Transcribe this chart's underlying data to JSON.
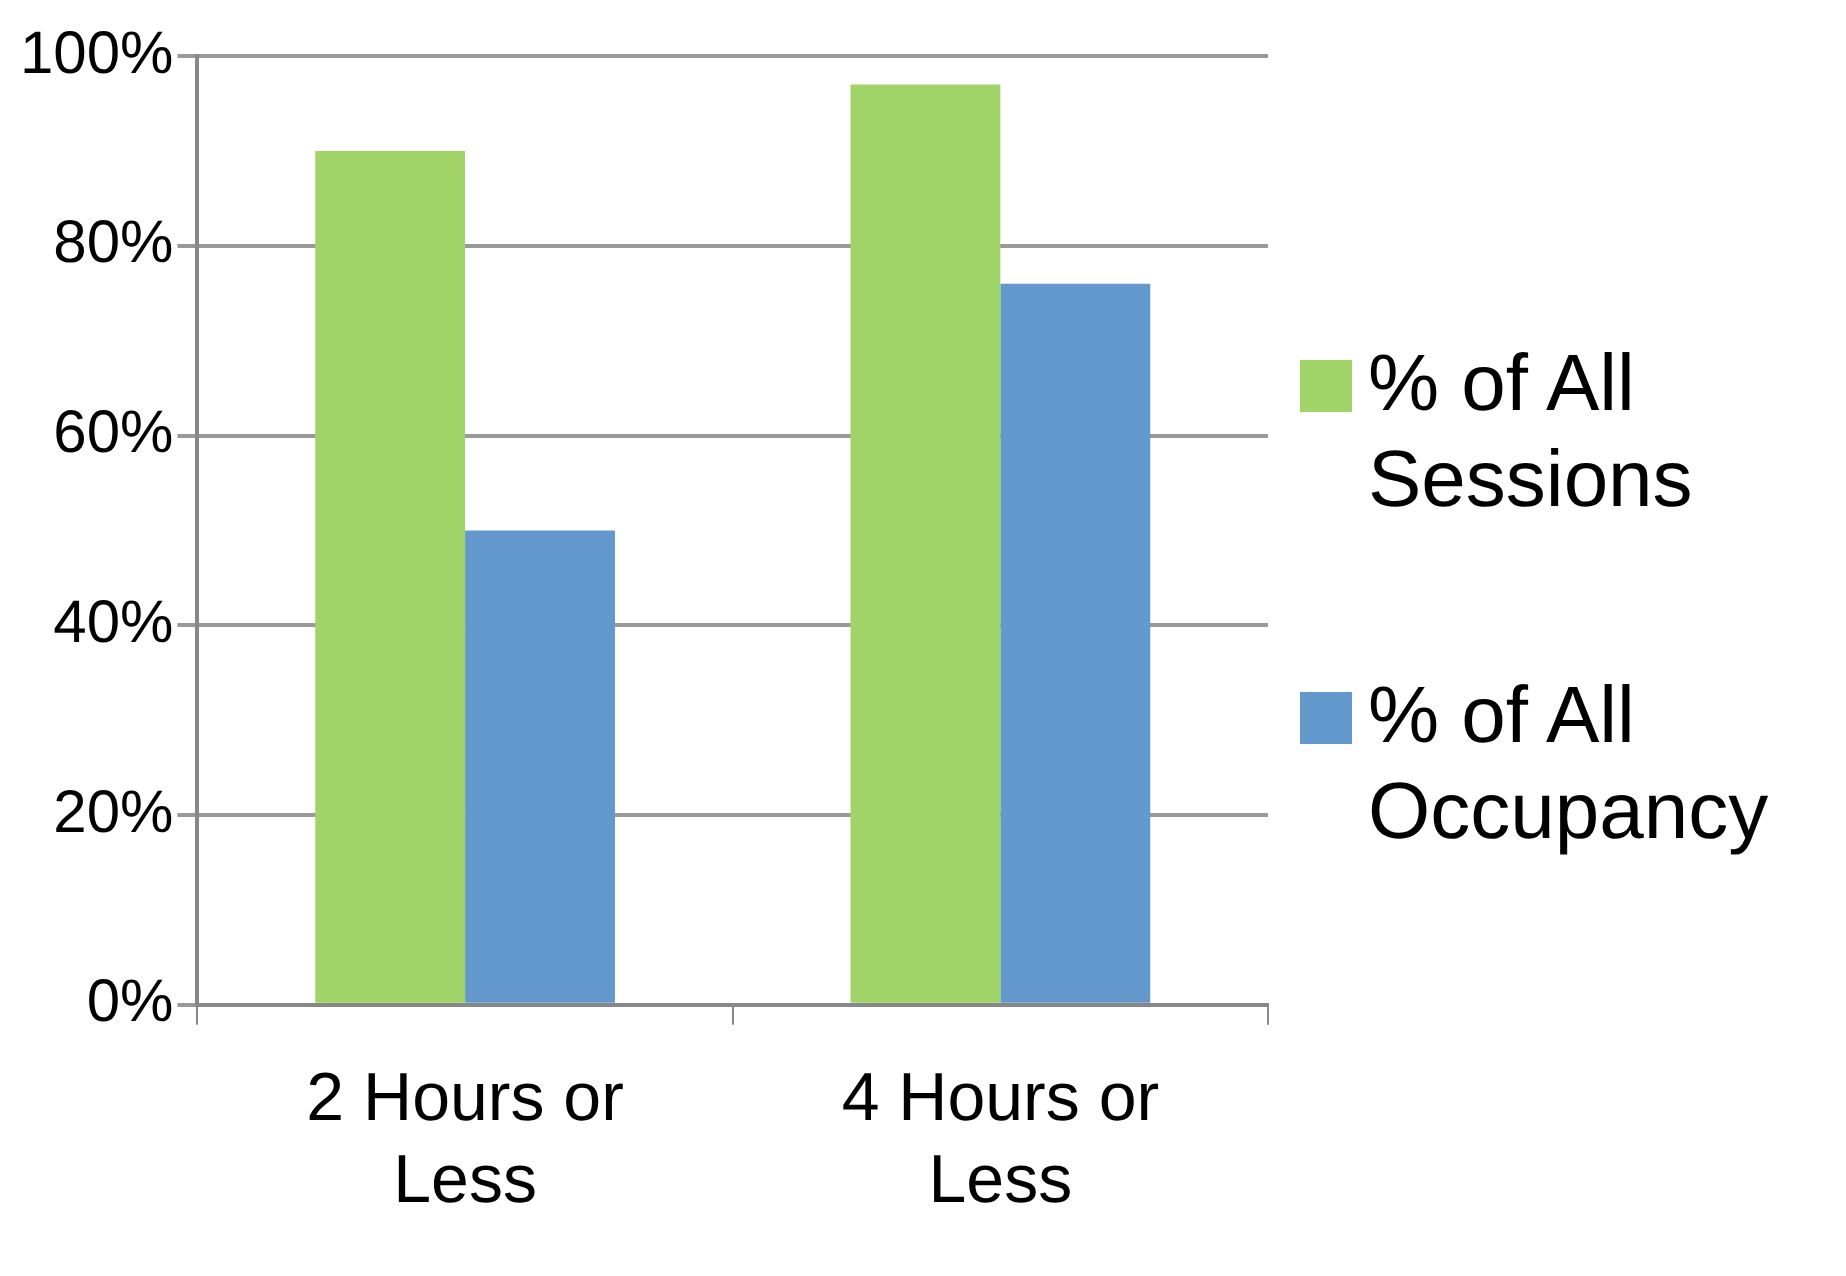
{
  "chart_data": {
    "type": "bar",
    "categories": [
      "2 Hours or Less",
      "4 Hours or Less"
    ],
    "series": [
      {
        "name": "% of All Sessions",
        "color": "#a0d468",
        "values": [
          90,
          97
        ]
      },
      {
        "name": "% of All Occupancy",
        "color": "#6298cb",
        "values": [
          50,
          76
        ]
      }
    ],
    "ylim": [
      0,
      100
    ],
    "yticks": [
      {
        "value": 0,
        "label": "0%"
      },
      {
        "value": 20,
        "label": "20%"
      },
      {
        "value": 40,
        "label": "40%"
      },
      {
        "value": 60,
        "label": "60%"
      },
      {
        "value": 80,
        "label": "80%"
      },
      {
        "value": 100,
        "label": "100%"
      }
    ],
    "grid": "y",
    "legend": "right"
  }
}
